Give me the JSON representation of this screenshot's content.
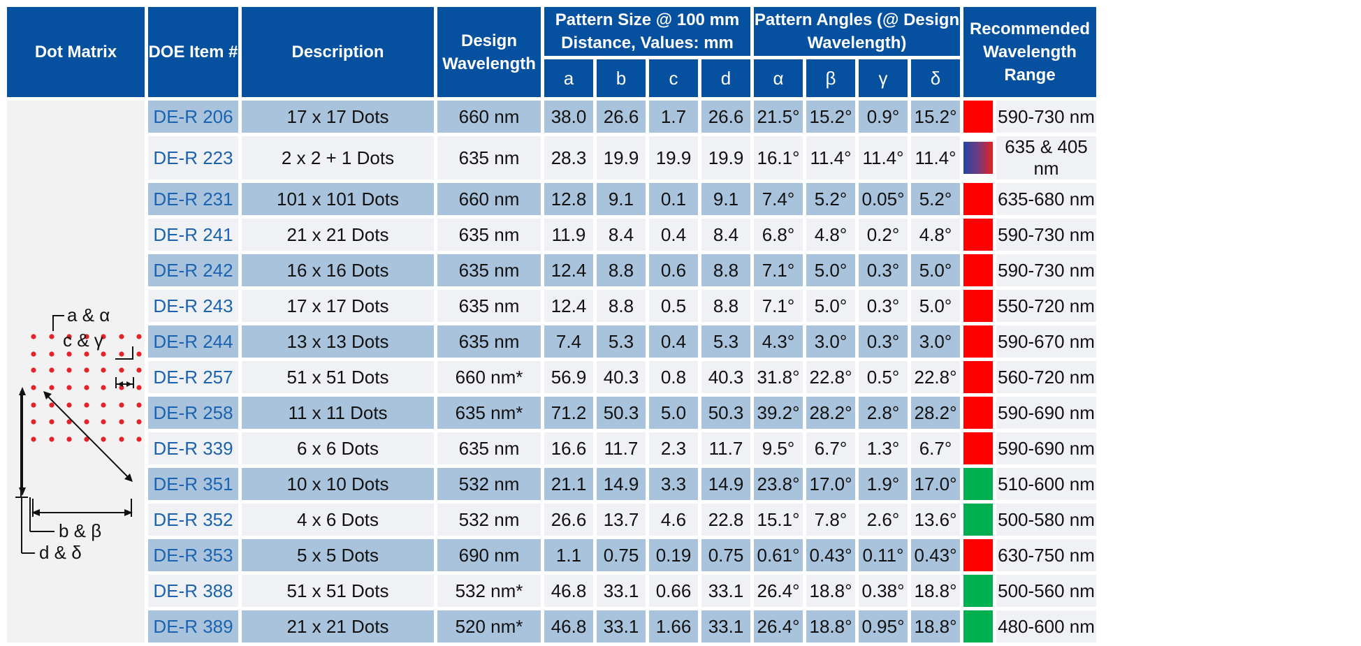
{
  "header": {
    "dot_matrix": "Dot Matrix",
    "item": "DOE Item #",
    "description": "Description",
    "design_wavelength": "Design Wavelength",
    "pattern_size": "Pattern Size @ 100 mm Distance, Values: mm",
    "pattern_angles": "Pattern Angles (@ Design Wavelength)",
    "recommended": "Recommended Wavelength Range",
    "sub": {
      "a": "a",
      "b": "b",
      "c": "c",
      "d": "d",
      "alpha": "α",
      "beta": "β",
      "gamma": "γ",
      "delta": "δ"
    }
  },
  "diagram": {
    "label_a": "a & α",
    "label_c": "c & γ",
    "label_b": "b & β",
    "label_d": "d & δ"
  },
  "colors": {
    "header_blue": "#0650a0",
    "row_blue": "#a9c3dd",
    "row_light": "#eff1f5",
    "link_blue": "#1b63b0",
    "swatch_red": "#ff0000",
    "swatch_green": "#00b050"
  },
  "rows": [
    {
      "item": "DE-R 206",
      "desc": "17 x 17 Dots",
      "wl": "660 nm",
      "a": "38.0",
      "b": "26.6",
      "c": "1.7",
      "d": "26.6",
      "alpha": "21.5°",
      "beta": "15.2°",
      "gamma": "0.9°",
      "delta": "15.2°",
      "swatch": "red",
      "range": "590-730 nm"
    },
    {
      "item": "DE-R 223",
      "desc": "2 x 2 + 1 Dots",
      "wl": "635 nm",
      "a": "28.3",
      "b": "19.9",
      "c": "19.9",
      "d": "19.9",
      "alpha": "16.1°",
      "beta": "11.4°",
      "gamma": "11.4°",
      "delta": "11.4°",
      "swatch": "blue-red",
      "range": "635 & 405 nm"
    },
    {
      "item": "DE-R 231",
      "desc": "101 x 101 Dots",
      "wl": "660 nm",
      "a": "12.8",
      "b": "9.1",
      "c": "0.1",
      "d": "9.1",
      "alpha": "7.4°",
      "beta": "5.2°",
      "gamma": "0.05°",
      "delta": "5.2°",
      "swatch": "red",
      "range": "635-680 nm"
    },
    {
      "item": "DE-R 241",
      "desc": "21 x 21 Dots",
      "wl": "635 nm",
      "a": "11.9",
      "b": "8.4",
      "c": "0.4",
      "d": "8.4",
      "alpha": "6.8°",
      "beta": "4.8°",
      "gamma": "0.2°",
      "delta": "4.8°",
      "swatch": "red",
      "range": "590-730 nm"
    },
    {
      "item": "DE-R 242",
      "desc": "16 x 16 Dots",
      "wl": "635 nm",
      "a": "12.4",
      "b": "8.8",
      "c": "0.6",
      "d": "8.8",
      "alpha": "7.1°",
      "beta": "5.0°",
      "gamma": "0.3°",
      "delta": "5.0°",
      "swatch": "red",
      "range": "590-730 nm"
    },
    {
      "item": "DE-R 243",
      "desc": "17 x 17 Dots",
      "wl": "635 nm",
      "a": "12.4",
      "b": "8.8",
      "c": "0.5",
      "d": "8.8",
      "alpha": "7.1°",
      "beta": "5.0°",
      "gamma": "0.3°",
      "delta": "5.0°",
      "swatch": "red",
      "range": "550-720 nm"
    },
    {
      "item": "DE-R 244",
      "desc": "13 x 13 Dots",
      "wl": "635 nm",
      "a": "7.4",
      "b": "5.3",
      "c": "0.4",
      "d": "5.3",
      "alpha": "4.3°",
      "beta": "3.0°",
      "gamma": "0.3°",
      "delta": "3.0°",
      "swatch": "red",
      "range": "590-670 nm"
    },
    {
      "item": "DE-R 257",
      "desc": "51 x 51 Dots",
      "wl": "660 nm*",
      "a": "56.9",
      "b": "40.3",
      "c": "0.8",
      "d": "40.3",
      "alpha": "31.8°",
      "beta": "22.8°",
      "gamma": "0.5°",
      "delta": "22.8°",
      "swatch": "red",
      "range": "560-720 nm"
    },
    {
      "item": "DE-R 258",
      "desc": "11 x 11 Dots",
      "wl": "635 nm*",
      "a": "71.2",
      "b": "50.3",
      "c": "5.0",
      "d": "50.3",
      "alpha": "39.2°",
      "beta": "28.2°",
      "gamma": "2.8°",
      "delta": "28.2°",
      "swatch": "red",
      "range": "590-690 nm"
    },
    {
      "item": "DE-R 339",
      "desc": "6 x 6 Dots",
      "wl": "635 nm",
      "a": "16.6",
      "b": "11.7",
      "c": "2.3",
      "d": "11.7",
      "alpha": "9.5°",
      "beta": "6.7°",
      "gamma": "1.3°",
      "delta": "6.7°",
      "swatch": "red",
      "range": "590-690 nm"
    },
    {
      "item": "DE-R 351",
      "desc": "10 x 10 Dots",
      "wl": "532 nm",
      "a": "21.1",
      "b": "14.9",
      "c": "3.3",
      "d": "14.9",
      "alpha": "23.8°",
      "beta": "17.0°",
      "gamma": "1.9°",
      "delta": "17.0°",
      "swatch": "green",
      "range": "510-600 nm"
    },
    {
      "item": "DE-R 352",
      "desc": "4 x 6 Dots",
      "wl": "532 nm",
      "a": "26.6",
      "b": "13.7",
      "c": "4.6",
      "d": "22.8",
      "alpha": "15.1°",
      "beta": "7.8°",
      "gamma": "2.6°",
      "delta": "13.6°",
      "swatch": "green",
      "range": "500-580 nm"
    },
    {
      "item": "DE-R 353",
      "desc": "5 x 5 Dots",
      "wl": "690 nm",
      "a": "1.1",
      "b": "0.75",
      "c": "0.19",
      "d": "0.75",
      "alpha": "0.61°",
      "beta": "0.43°",
      "gamma": "0.11°",
      "delta": "0.43°",
      "swatch": "red",
      "range": "630-750 nm"
    },
    {
      "item": "DE-R 388",
      "desc": "51 x 51 Dots",
      "wl": "532 nm*",
      "a": "46.8",
      "b": "33.1",
      "c": "0.66",
      "d": "33.1",
      "alpha": "26.4°",
      "beta": "18.8°",
      "gamma": "0.38°",
      "delta": "18.8°",
      "swatch": "green",
      "range": "500-560 nm"
    },
    {
      "item": "DE-R 389",
      "desc": "21 x 21 Dots",
      "wl": "520 nm*",
      "a": "46.8",
      "b": "33.1",
      "c": "1.66",
      "d": "33.1",
      "alpha": "26.4°",
      "beta": "18.8°",
      "gamma": "0.95°",
      "delta": "18.8°",
      "swatch": "green",
      "range": "480-600 nm"
    }
  ]
}
